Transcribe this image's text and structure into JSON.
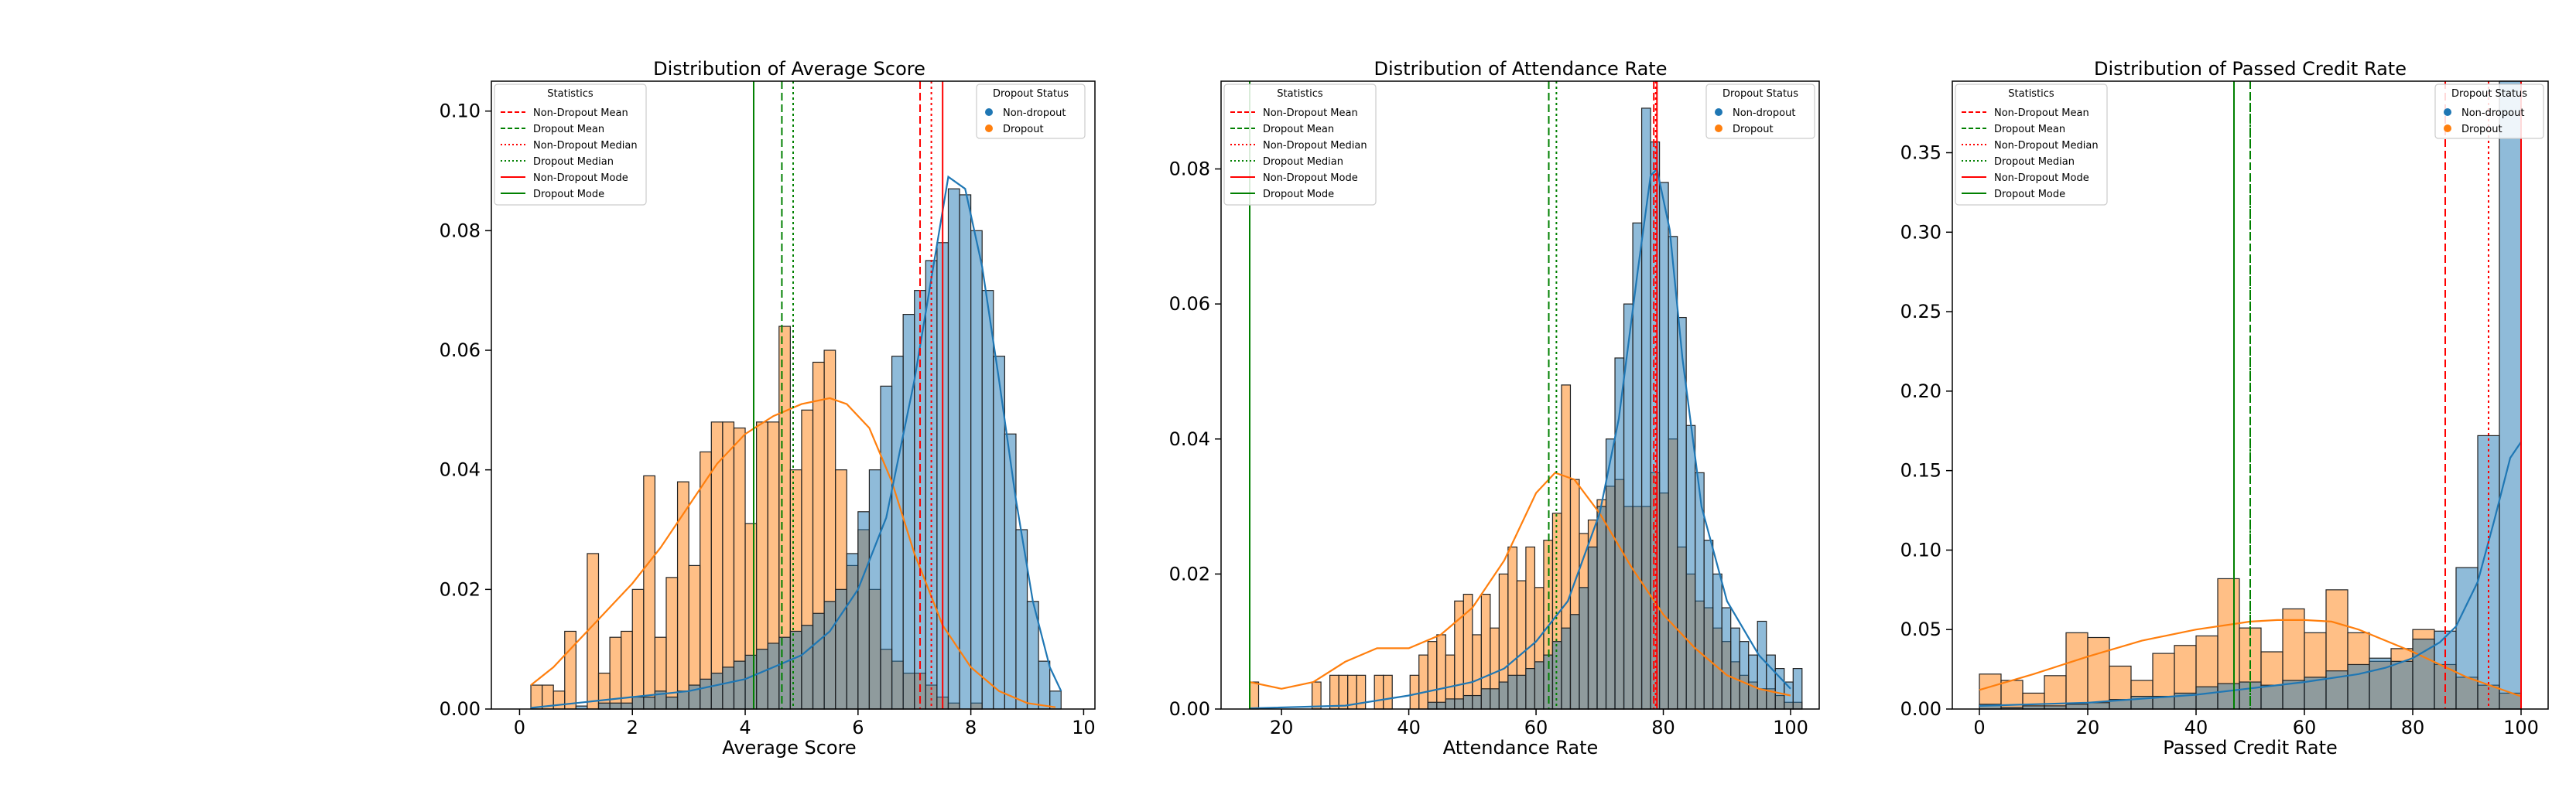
{
  "chart_data": [
    {
      "type": "histogram",
      "title": "Distribution of Average Score",
      "xlabel": "Average Score",
      "ylabel": "",
      "xlim": [
        -0.5,
        10.2
      ],
      "ylim": [
        0,
        0.105
      ],
      "xticks": [
        "0",
        "2",
        "4",
        "6",
        "8",
        "10"
      ],
      "yticks": [
        "0.00",
        "0.02",
        "0.04",
        "0.06",
        "0.08",
        "0.10"
      ],
      "bin_start": 0.2,
      "bin_width": 0.2,
      "series": [
        {
          "name": "Dropout",
          "color": "#ff7f0e",
          "values": [
            0.004,
            0.004,
            0.003,
            0.013,
            0.0,
            0.026,
            0.006,
            0.012,
            0.013,
            0.02,
            0.039,
            0.012,
            0.022,
            0.038,
            0.024,
            0.043,
            0.048,
            0.048,
            0.047,
            0.031,
            0.048,
            0.048,
            0.064,
            0.04,
            0.05,
            0.058,
            0.06,
            0.04,
            0.024,
            0.03,
            0.02,
            0.01,
            0.008,
            0.006,
            0.006,
            0.004,
            0.002,
            0.001,
            0.0,
            0.001,
            0.0,
            0.0,
            0.0,
            0.0,
            0.0,
            0.0,
            0.0
          ]
        },
        {
          "name": "Non-dropout",
          "color": "#1f77b4",
          "values": [
            0.0,
            0.0,
            0.0,
            0.0,
            0.0005,
            0.0,
            0.001,
            0.001,
            0.001,
            0.002,
            0.002,
            0.003,
            0.002,
            0.003,
            0.004,
            0.005,
            0.006,
            0.007,
            0.008,
            0.009,
            0.01,
            0.011,
            0.012,
            0.013,
            0.014,
            0.016,
            0.018,
            0.02,
            0.026,
            0.033,
            0.04,
            0.054,
            0.059,
            0.066,
            0.07,
            0.075,
            0.078,
            0.087,
            0.086,
            0.08,
            0.07,
            0.059,
            0.046,
            0.03,
            0.018,
            0.008,
            0.003
          ]
        }
      ],
      "kde": [
        {
          "series": "Dropout",
          "x": [
            0.2,
            0.6,
            1.0,
            1.5,
            2.0,
            2.5,
            3.0,
            3.5,
            4.0,
            4.5,
            5.0,
            5.5,
            5.8,
            6.2,
            6.6,
            7.0,
            7.5,
            8.0,
            8.5,
            9.0,
            9.5
          ],
          "y": [
            0.004,
            0.007,
            0.011,
            0.016,
            0.021,
            0.027,
            0.034,
            0.041,
            0.046,
            0.049,
            0.051,
            0.052,
            0.051,
            0.047,
            0.038,
            0.026,
            0.014,
            0.007,
            0.003,
            0.001,
            0.0003
          ]
        },
        {
          "series": "Non-dropout",
          "x": [
            0.2,
            1.0,
            2.0,
            3.0,
            4.0,
            5.0,
            5.5,
            6.0,
            6.5,
            7.0,
            7.3,
            7.6,
            7.9,
            8.2,
            8.5,
            8.8,
            9.1,
            9.4,
            9.6
          ],
          "y": [
            0.0002,
            0.001,
            0.002,
            0.003,
            0.005,
            0.009,
            0.013,
            0.02,
            0.032,
            0.055,
            0.072,
            0.089,
            0.087,
            0.074,
            0.055,
            0.035,
            0.018,
            0.007,
            0.003
          ]
        }
      ],
      "stat_lines": {
        "non_dropout_mean": 7.1,
        "dropout_mean": 4.65,
        "non_dropout_median": 7.3,
        "dropout_median": 4.85,
        "non_dropout_mode": 7.5,
        "dropout_mode": 4.15
      }
    },
    {
      "type": "histogram",
      "title": "Distribution of Attendance Rate",
      "xlabel": "Attendance Rate",
      "ylabel": "",
      "xlim": [
        10.5,
        104.5
      ],
      "ylim": [
        0,
        0.093
      ],
      "xticks": [
        "20",
        "40",
        "60",
        "80",
        "100"
      ],
      "yticks": [
        "0.00",
        "0.02",
        "0.04",
        "0.06",
        "0.08"
      ],
      "bin_start": 15,
      "bin_width": 1.4,
      "series": [
        {
          "name": "Dropout",
          "color": "#ff7f0e",
          "values": [
            0.004,
            0,
            0,
            0,
            0,
            0,
            0,
            0.004,
            0,
            0.005,
            0.005,
            0.005,
            0.005,
            0,
            0.005,
            0.005,
            0,
            0,
            0.005,
            0.008,
            0.01,
            0.011,
            0.008,
            0.016,
            0.017,
            0.011,
            0.017,
            0.012,
            0.02,
            0.024,
            0.019,
            0.024,
            0.018,
            0.025,
            0.029,
            0.048,
            0.034,
            0.026,
            0.028,
            0.031,
            0.033,
            0.034,
            0.03,
            0.03,
            0.03,
            0.035,
            0.032,
            0.04,
            0.024,
            0.02,
            0.016,
            0.015,
            0.012,
            0.01,
            0.007,
            0.005,
            0.004,
            0.003,
            0.003,
            0.002,
            0.001,
            0.001
          ]
        },
        {
          "name": "Non-dropout",
          "color": "#1f77b4",
          "values": [
            0,
            0,
            0,
            0,
            0,
            0,
            0,
            0,
            0,
            0,
            0,
            0,
            0,
            0,
            0,
            0,
            0,
            0,
            0,
            0,
            0.001,
            0.001,
            0.0015,
            0.0015,
            0.002,
            0.002,
            0.003,
            0.003,
            0.004,
            0.005,
            0.005,
            0.006,
            0.007,
            0.008,
            0.01,
            0.012,
            0.014,
            0.018,
            0.024,
            0.03,
            0.04,
            0.052,
            0.06,
            0.072,
            0.089,
            0.084,
            0.078,
            0.07,
            0.058,
            0.042,
            0.035,
            0.025,
            0.02,
            0.015,
            0.012,
            0.01,
            0.008,
            0.013,
            0.008,
            0.006,
            0.004,
            0.006
          ]
        }
      ],
      "kde": [
        {
          "series": "Dropout",
          "x": [
            15,
            20,
            25,
            30,
            35,
            40,
            45,
            50,
            55,
            60,
            63,
            66,
            70,
            75,
            80,
            85,
            90,
            95,
            100
          ],
          "y": [
            0.004,
            0.003,
            0.004,
            0.007,
            0.009,
            0.009,
            0.011,
            0.015,
            0.022,
            0.032,
            0.035,
            0.034,
            0.029,
            0.021,
            0.014,
            0.009,
            0.005,
            0.003,
            0.002
          ]
        },
        {
          "series": "Non-dropout",
          "x": [
            15,
            30,
            40,
            50,
            55,
            60,
            65,
            70,
            73,
            76,
            78,
            79,
            81,
            83,
            86,
            90,
            95,
            100
          ],
          "y": [
            0.0001,
            0.0005,
            0.002,
            0.004,
            0.006,
            0.01,
            0.016,
            0.029,
            0.043,
            0.065,
            0.079,
            0.08,
            0.071,
            0.052,
            0.03,
            0.016,
            0.008,
            0.003
          ]
        }
      ],
      "stat_lines": {
        "non_dropout_mean": 78.5,
        "dropout_mean": 62.0,
        "non_dropout_median": 78.8,
        "dropout_median": 63.2,
        "non_dropout_mode": 79.0,
        "dropout_mode": 15.0
      }
    },
    {
      "type": "histogram",
      "title": "Distribution of Passed Credit Rate",
      "xlabel": "Passed Credit Rate",
      "ylabel": "",
      "xlim": [
        -5,
        105
      ],
      "ylim": [
        0,
        0.395
      ],
      "xticks": [
        "0",
        "20",
        "40",
        "60",
        "80",
        "100"
      ],
      "yticks": [
        "0.00",
        "0.05",
        "0.10",
        "0.15",
        "0.20",
        "0.25",
        "0.30",
        "0.35"
      ],
      "bin_start": 0,
      "bin_width": 4,
      "series": [
        {
          "name": "Dropout",
          "color": "#ff7f0e",
          "values": [
            0.022,
            0.018,
            0.01,
            0.021,
            0.048,
            0.045,
            0.027,
            0.018,
            0.035,
            0.04,
            0.046,
            0.082,
            0.051,
            0.036,
            0.063,
            0.048,
            0.075,
            0.048,
            0.03,
            0.038,
            0.05,
            0.028,
            0.02,
            0.015,
            0.01
          ]
        },
        {
          "name": "Non-dropout",
          "color": "#1f77b4",
          "values": [
            0.003,
            0.001,
            0.002,
            0.002,
            0.003,
            0.004,
            0.006,
            0.008,
            0.008,
            0.01,
            0.014,
            0.016,
            0.017,
            0.015,
            0.018,
            0.02,
            0.024,
            0.028,
            0.032,
            0.03,
            0.044,
            0.049,
            0.089,
            0.172,
            0.396
          ]
        }
      ],
      "kde": [
        {
          "series": "Dropout",
          "x": [
            0,
            10,
            20,
            30,
            40,
            50,
            55,
            60,
            65,
            70,
            80,
            90,
            100
          ],
          "y": [
            0.012,
            0.022,
            0.033,
            0.043,
            0.05,
            0.055,
            0.056,
            0.056,
            0.055,
            0.05,
            0.036,
            0.02,
            0.008
          ]
        },
        {
          "series": "Non-dropout",
          "x": [
            0,
            20,
            40,
            50,
            60,
            70,
            75,
            80,
            85,
            88,
            92,
            95,
            98,
            100
          ],
          "y": [
            0.002,
            0.004,
            0.009,
            0.013,
            0.017,
            0.022,
            0.026,
            0.032,
            0.042,
            0.052,
            0.08,
            0.118,
            0.158,
            0.168
          ]
        }
      ],
      "stat_lines": {
        "non_dropout_mean": 86.0,
        "dropout_mean": 50.0,
        "non_dropout_median": 94.0,
        "dropout_median": 50.0,
        "non_dropout_mode": 100.0,
        "dropout_mode": 47.0
      }
    }
  ],
  "legend_stats": {
    "title": "Statistics",
    "entries": [
      {
        "label": "Non-Dropout Mean",
        "color": "#ff0000",
        "style": "dashed"
      },
      {
        "label": "Dropout Mean",
        "color": "#008000",
        "style": "dashed"
      },
      {
        "label": "Non-Dropout Median",
        "color": "#ff0000",
        "style": "dotted"
      },
      {
        "label": "Dropout Median",
        "color": "#008000",
        "style": "dotted"
      },
      {
        "label": "Non-Dropout Mode",
        "color": "#ff0000",
        "style": "solid"
      },
      {
        "label": "Dropout Mode",
        "color": "#008000",
        "style": "solid"
      }
    ]
  },
  "legend_status": {
    "title": "Dropout Status",
    "entries": [
      {
        "label": "Non-dropout",
        "color": "#1f77b4"
      },
      {
        "label": "Dropout",
        "color": "#ff7f0e"
      }
    ]
  }
}
